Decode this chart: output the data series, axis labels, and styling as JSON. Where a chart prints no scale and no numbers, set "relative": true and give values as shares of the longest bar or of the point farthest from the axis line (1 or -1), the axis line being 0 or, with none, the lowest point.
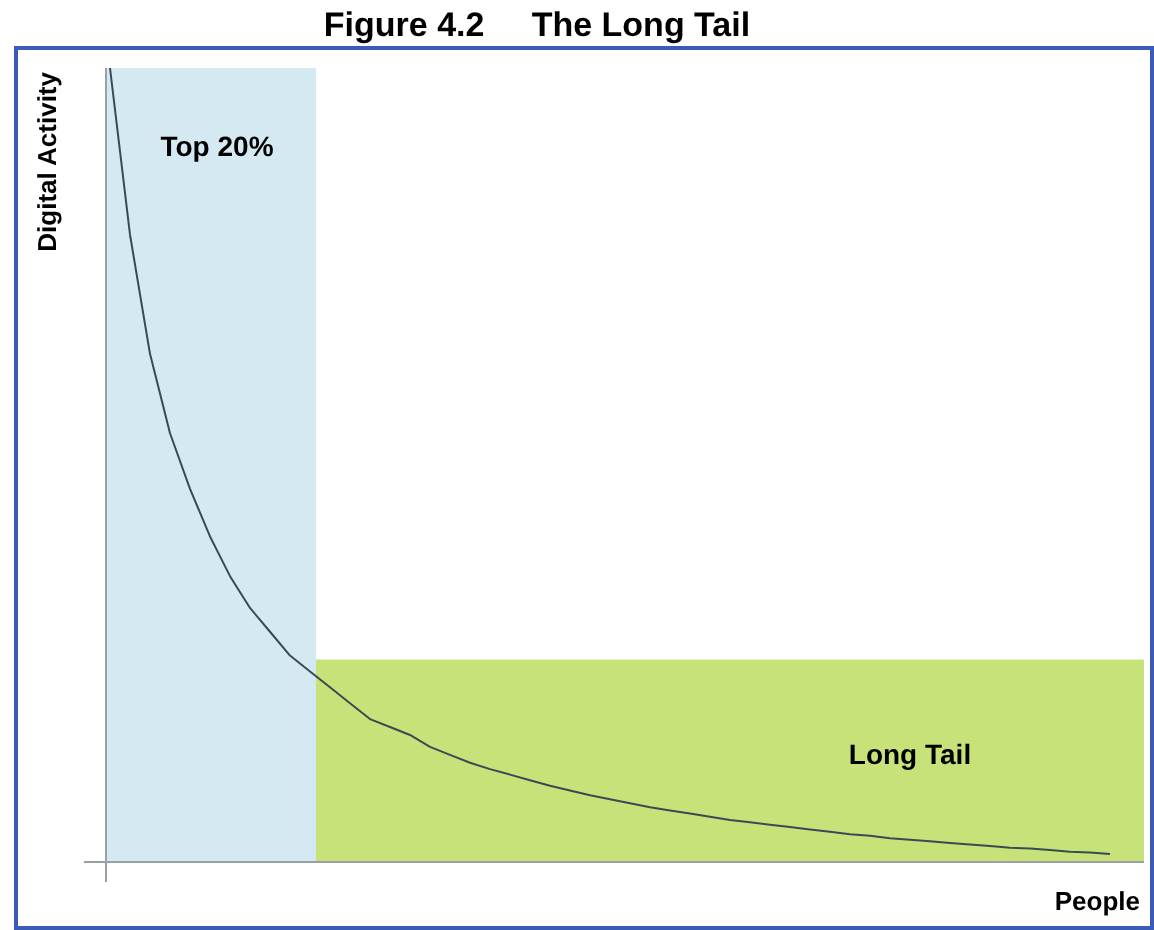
{
  "chart_data": {
    "type": "line",
    "title": "Figure 4.2     The Long Tail",
    "xlabel": "People",
    "ylabel": "Digital Activity",
    "relative": true,
    "marker": "none",
    "line_style": "solid",
    "categories": [
      null,
      null,
      null,
      null,
      null,
      null,
      null,
      null,
      null,
      null,
      null,
      null,
      null,
      null,
      null,
      null,
      null,
      null,
      null,
      null,
      null,
      null,
      null,
      null,
      null,
      null,
      null,
      null,
      null,
      null,
      null,
      null,
      null,
      null,
      null,
      null,
      null,
      null,
      null,
      null,
      null,
      null,
      null,
      null,
      null,
      null,
      null,
      null,
      null,
      null,
      null
    ],
    "series": [
      {
        "color": "#3a4a55",
        "values": [
          1,
          0.79,
          0.64,
          0.54,
          0.47,
          0.41,
          0.36,
          0.32,
          0.29,
          0.26,
          0.24,
          0.22,
          0.2,
          0.18,
          0.17,
          0.16,
          0.145,
          0.135,
          0.125,
          0.117,
          0.11,
          0.103,
          0.096,
          0.09,
          0.084,
          0.079,
          0.074,
          0.069,
          0.065,
          0.061,
          0.057,
          0.053,
          0.05,
          0.047,
          0.044,
          0.041,
          0.038,
          0.035,
          0.033,
          0.03,
          0.028,
          0.026,
          0.024,
          0.022,
          0.02,
          0.018,
          0.017,
          0.015,
          0.013,
          0.012,
          0.01
        ]
      }
    ],
    "annotations": [
      "Top 20%",
      "Long Tail"
    ]
  }
}
